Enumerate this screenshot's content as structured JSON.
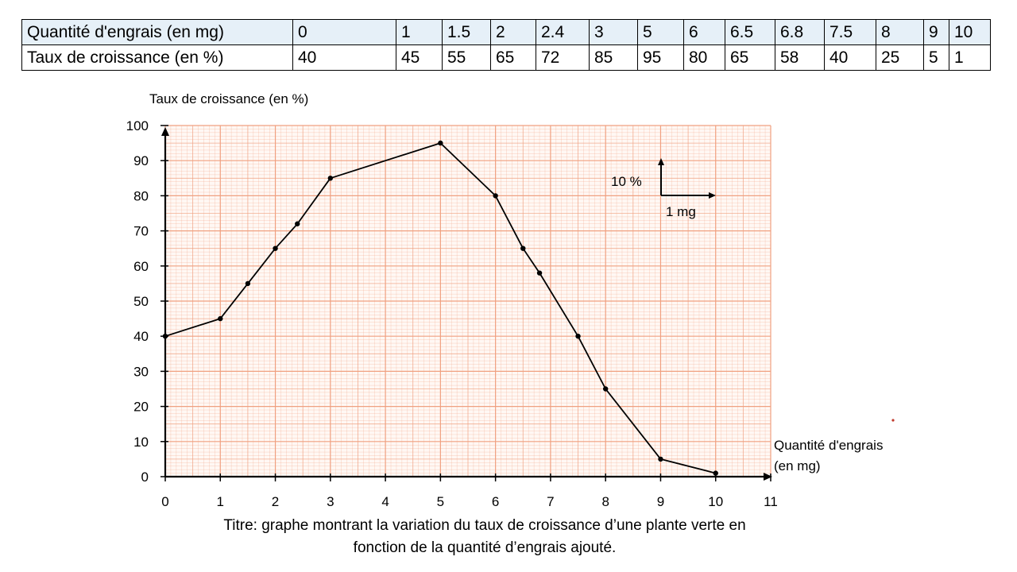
{
  "table": {
    "row_x_label": "Quantité d'engrais (en mg)",
    "row_y_label": "Taux de croissance (en %)",
    "x_values": [
      "0",
      "1",
      "1.5",
      "2",
      "2.4",
      "3",
      "5",
      "6",
      "6.5",
      "6.8",
      "7.5",
      "8",
      "9",
      "10"
    ],
    "y_values": [
      "40",
      "45",
      "55",
      "65",
      "72",
      "85",
      "95",
      "80",
      "65",
      "58",
      "40",
      "25",
      "5",
      "1"
    ]
  },
  "chart_data": {
    "type": "line",
    "x": [
      0,
      1,
      1.5,
      2,
      2.4,
      3,
      5,
      6,
      6.5,
      6.8,
      7.5,
      8,
      9,
      10
    ],
    "series": [
      {
        "values": [
          40,
          45,
          55,
          65,
          72,
          85,
          95,
          80,
          65,
          58,
          40,
          25,
          5,
          1
        ]
      }
    ],
    "ylabel": "Taux de croissance (en %)",
    "xlabel_line1": "Quantité d'engrais",
    "xlabel_line2": "(en mg)",
    "xlim": [
      0,
      11
    ],
    "ylim": [
      0,
      100
    ],
    "x_ticks": [
      "0",
      "1",
      "2",
      "3",
      "4",
      "5",
      "6",
      "7",
      "8",
      "9",
      "10",
      "11"
    ],
    "y_ticks": [
      "0",
      "10",
      "20",
      "30",
      "40",
      "50",
      "60",
      "70",
      "80",
      "90",
      "100"
    ],
    "grid": "graph paper (millimetre grid)",
    "grid_color": "#f0a080",
    "scale_legend": {
      "y_unit": "10 %",
      "x_unit": "1 mg"
    },
    "caption_line1": "Titre: graphe montrant la variation du taux de croissance d’une plante verte en",
    "caption_line2": "fonction de la quantité d’engrais ajouté."
  }
}
